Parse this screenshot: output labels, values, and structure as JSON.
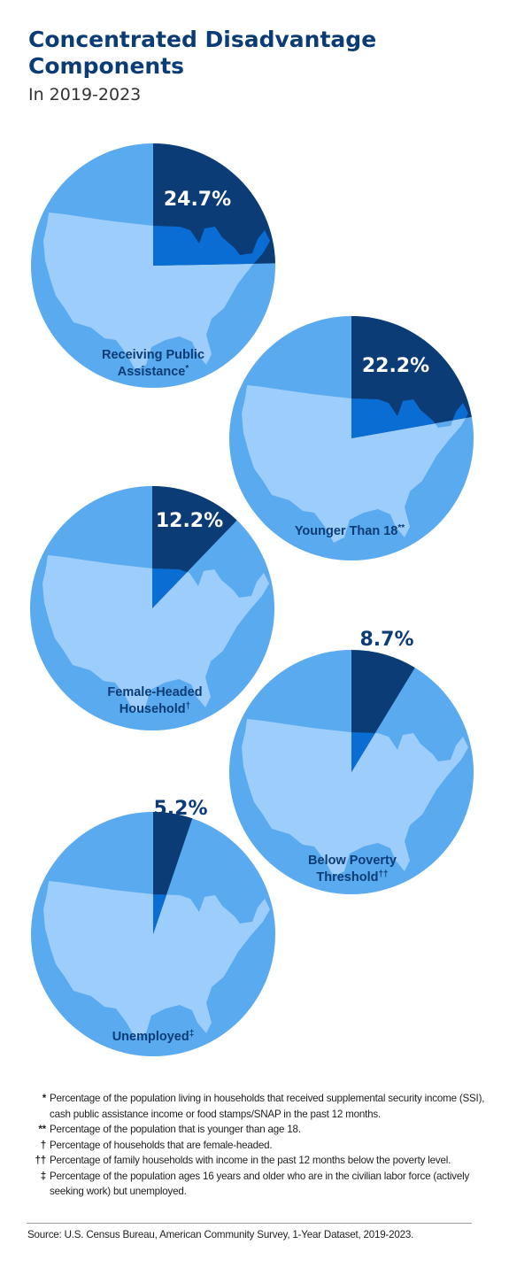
{
  "header": {
    "title": "Concentrated Disadvantage Components",
    "subtitle": "In 2019-2023"
  },
  "colors": {
    "dark": "#0b3c75",
    "pie_light": "#5aaaf0",
    "map_light": "#9dcdfb",
    "map_mid": "#0a6dd4",
    "label": "#0b3c75"
  },
  "chart_data": {
    "type": "pie",
    "title": "Concentrated Disadvantage Components",
    "subtitle": "In 2019-2023",
    "unit": "%",
    "slices": [
      {
        "label": "Receiving Public Assistance",
        "marker": "*",
        "value": 24.7,
        "value_label": "24.7%"
      },
      {
        "label": "Younger Than 18",
        "marker": "**",
        "value": 22.2,
        "value_label": "22.2%"
      },
      {
        "label": "Female-Headed Household",
        "marker": "†",
        "value": 12.2,
        "value_label": "12.2%"
      },
      {
        "label": "Below Poverty Threshold",
        "marker": "††",
        "value": 8.7,
        "value_label": "8.7%"
      },
      {
        "label": "Unemployed",
        "marker": "‡",
        "value": 5.2,
        "value_label": "5.2%"
      }
    ]
  },
  "footnotes": [
    {
      "symbol": "*",
      "text": "Percentage of the population living in households that received supplemental security income (SSI), cash public assistance income or food stamps/SNAP in the past 12 months."
    },
    {
      "symbol": "**",
      "text": "Percentage of the population that is younger than age 18."
    },
    {
      "symbol": "†",
      "text": "Percentage of households that are female-headed."
    },
    {
      "symbol": "††",
      "text": "Percentage of family households with income in the past 12 months below the poverty level."
    },
    {
      "symbol": "‡",
      "text": "Percentage of the population ages 16 years and older who are in the civilian labor force (actively seeking work) but unemployed."
    }
  ],
  "source": "Source: U.S. Census Bureau, American Community Survey, 1-Year Dataset, 2019-2023."
}
